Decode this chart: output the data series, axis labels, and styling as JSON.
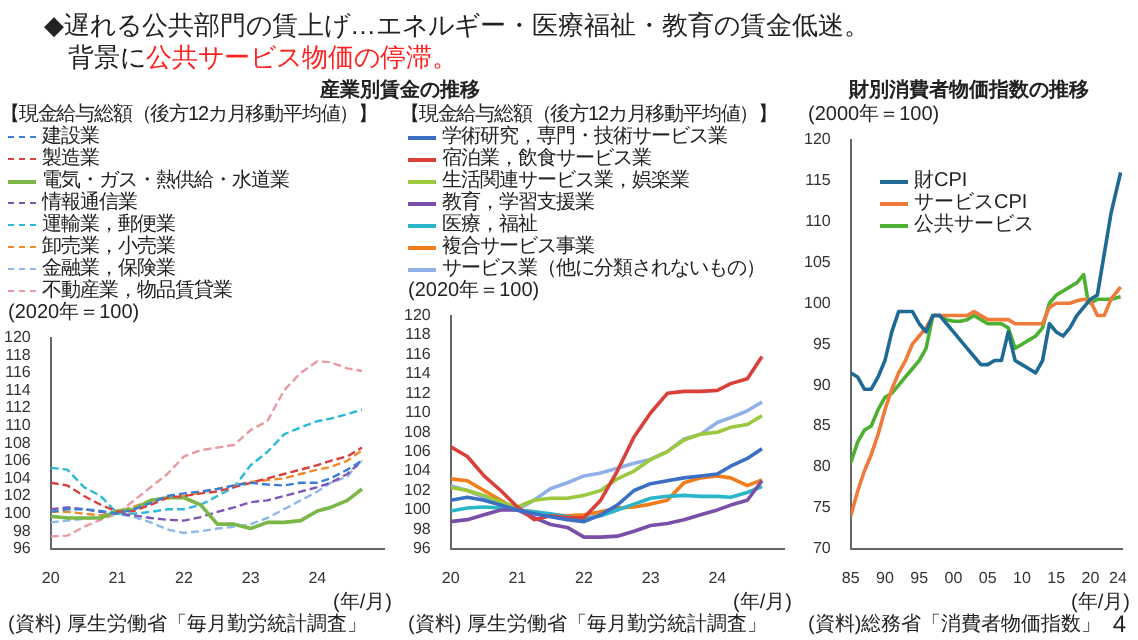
{
  "chart_data": [
    {
      "type": "line",
      "title": "産業別賃金の推移",
      "subtitle": "【現金給与総額（後方12カ月移動平均値）】",
      "ylabel": "(2020年＝100)",
      "xlabel": "(年/月)",
      "annotations": [
        "◆遅れる公共部門の賃上げ…エネルギー・医療福祉・教育の賃金低迷。",
        "背景に",
        "公共サービス物価の停滞。",
        "(資料) 厚生労働省「毎月勤労統計調査」"
      ],
      "x": [
        2020,
        2020.25,
        2020.5,
        2020.75,
        2021,
        2021.25,
        2021.5,
        2021.75,
        2022,
        2022.25,
        2022.5,
        2022.75,
        2023,
        2023.25,
        2023.5,
        2023.75,
        2024,
        2024.2,
        2024.45,
        2024.67
      ],
      "xlim": [
        2020,
        2025
      ],
      "xticks": [
        {
          "value": 2020,
          "label": "20"
        },
        {
          "value": 2021,
          "label": "21"
        },
        {
          "value": 2022,
          "label": "22"
        },
        {
          "value": 2023,
          "label": "23"
        },
        {
          "value": 2024,
          "label": "24"
        }
      ],
      "ylim": [
        96,
        120
      ],
      "yticks": [
        96,
        98,
        100,
        102,
        104,
        106,
        108,
        110,
        112,
        114,
        116,
        118,
        120
      ],
      "legend": "top left",
      "series": [
        {
          "name": "建設業",
          "color": "#3a7fd5",
          "line_style": "dashed",
          "values": [
            100.2,
            100.5,
            100.5,
            100.3,
            100,
            100.5,
            101.2,
            102,
            102.3,
            102.5,
            102.8,
            103.2,
            103.5,
            103.3,
            103.2,
            103.5,
            103.5,
            104,
            105,
            106
          ]
        },
        {
          "name": "製造業",
          "color": "#d94040",
          "line_style": "dashed",
          "values": [
            103.5,
            103.2,
            102,
            101,
            100.2,
            100.3,
            101,
            101.8,
            102,
            102.3,
            102.5,
            103,
            103.5,
            104,
            104.5,
            105,
            105.5,
            106,
            106.5,
            107.5
          ]
        },
        {
          "name": "電気・ガス・熱供給・水道業",
          "color": "#7ab648",
          "line_style": "solid",
          "values": [
            99.7,
            99.5,
            99.5,
            99.5,
            100.3,
            100.5,
            101.5,
            101.8,
            101.8,
            101,
            98.8,
            98.8,
            98.3,
            99,
            99,
            99.2,
            100.3,
            100.7,
            101.5,
            102.8
          ]
        },
        {
          "name": "情報通信業",
          "color": "#7e57b5",
          "line_style": "dashed",
          "values": [
            100.5,
            100.7,
            100.5,
            100.2,
            100,
            99.8,
            99.5,
            99.3,
            99.2,
            99.6,
            100.2,
            100.7,
            101.3,
            101.5,
            102,
            102.5,
            103,
            103.5,
            104.5,
            106
          ]
        },
        {
          "name": "運輸業，郵便業",
          "color": "#2bb9d8",
          "line_style": "dashed",
          "values": [
            105.2,
            105,
            103,
            102,
            100,
            100,
            100.2,
            100.5,
            100.5,
            101,
            102,
            103,
            105.5,
            107,
            109,
            109.8,
            110.5,
            110.8,
            111.3,
            111.8
          ]
        },
        {
          "name": "卸売業，小売業",
          "color": "#f08a2a",
          "line_style": "dashed",
          "values": [
            100.2,
            100.2,
            100,
            99.8,
            100.2,
            100.8,
            101.5,
            101.8,
            102,
            102.4,
            102.8,
            103.2,
            103.6,
            103.8,
            104,
            104.5,
            105,
            105.3,
            106,
            107.2
          ]
        },
        {
          "name": "金融業，保険業",
          "color": "#8db8e8",
          "line_style": "dashed",
          "values": [
            99,
            99.2,
            99.4,
            99.6,
            100,
            99.6,
            99,
            98.2,
            97.8,
            98,
            98.3,
            98.5,
            98.8,
            99.5,
            100.5,
            101.5,
            102.5,
            103.5,
            104.2,
            106.2
          ]
        },
        {
          "name": "不動産業，物品賃貸業",
          "color": "#e89aa0",
          "line_style": "dashed",
          "values": [
            97.4,
            97.5,
            98.5,
            99.3,
            100,
            101.5,
            103,
            104.5,
            106.5,
            107.2,
            107.5,
            107.8,
            109.5,
            110.5,
            114,
            116,
            117.3,
            117.2,
            116.5,
            116.2
          ]
        }
      ]
    },
    {
      "type": "line",
      "subtitle": "【現金給与総額（後方12カ月移動平均値）】",
      "ylabel": "(2020年＝100)",
      "xlabel": "(年/月)",
      "annotations": [
        "(資料) 厚生労働省「毎月勤労統計調査」"
      ],
      "x": [
        2020,
        2020.25,
        2020.5,
        2020.75,
        2021,
        2021.25,
        2021.5,
        2021.75,
        2022,
        2022.25,
        2022.5,
        2022.75,
        2023,
        2023.25,
        2023.5,
        2023.75,
        2024,
        2024.2,
        2024.45,
        2024.67
      ],
      "xlim": [
        2020,
        2025
      ],
      "xticks": [
        {
          "value": 2020,
          "label": "20"
        },
        {
          "value": 2021,
          "label": "21"
        },
        {
          "value": 2022,
          "label": "22"
        },
        {
          "value": 2023,
          "label": "23"
        },
        {
          "value": 2024,
          "label": "24"
        }
      ],
      "ylim": [
        96,
        120
      ],
      "yticks": [
        96,
        98,
        100,
        102,
        104,
        106,
        108,
        110,
        112,
        114,
        116,
        118,
        120
      ],
      "legend": "top left",
      "line_style": "solid",
      "series": [
        {
          "name": "学術研究，専門・技術サービス業",
          "color": "#3a6fc4",
          "values": [
            101,
            101.3,
            101,
            100.5,
            100,
            99.6,
            99.3,
            99,
            98.8,
            99.5,
            100.5,
            102,
            102.7,
            103,
            103.3,
            103.5,
            103.7,
            104.5,
            105.3,
            106.3
          ]
        },
        {
          "name": "宿泊業，飲食サービス業",
          "color": "#d9403a",
          "values": [
            106.5,
            105.5,
            103.5,
            102,
            100.3,
            99,
            99.4,
            99.2,
            99.2,
            101,
            104,
            107.5,
            110,
            112,
            112.2,
            112.2,
            112.3,
            113,
            113.5,
            115.8
          ]
        },
        {
          "name": "生活関連サービス業，娯楽業",
          "color": "#9bc83c",
          "values": [
            102.3,
            102,
            101.5,
            100.8,
            100.3,
            101,
            101.2,
            101.2,
            101.5,
            102,
            103.2,
            104,
            105.2,
            106,
            107.2,
            107.8,
            108,
            108.5,
            108.8,
            109.7
          ]
        },
        {
          "name": "教育，学習支援業",
          "color": "#7a4fa8",
          "values": [
            98.8,
            99,
            99.5,
            100,
            100,
            99.2,
            98.5,
            98.2,
            97.2,
            97.2,
            97.3,
            97.8,
            98.4,
            98.6,
            99,
            99.5,
            100,
            100.5,
            101,
            103
          ]
        },
        {
          "name": "医療，福祉",
          "color": "#2ab5c8",
          "values": [
            99.9,
            100.2,
            100.3,
            100.2,
            100,
            99.8,
            99.6,
            99.3,
            99.1,
            99.4,
            100,
            100.6,
            101.2,
            101.4,
            101.5,
            101.4,
            101.4,
            101.3,
            101.8,
            102.4
          ]
        },
        {
          "name": "複合サービス事業",
          "color": "#f07c1a",
          "values": [
            103.2,
            103,
            102,
            101,
            100,
            99.8,
            99.5,
            99.4,
            99.5,
            99.8,
            100.2,
            100.3,
            100.6,
            101,
            102.8,
            103.3,
            103.5,
            103.3,
            102.5,
            103.1
          ]
        },
        {
          "name": "サービス業（他に分類されないもの）",
          "color": "#90b0e8",
          "values": [
            102.5,
            102,
            101.3,
            100.7,
            100,
            101,
            102.2,
            102.8,
            103.5,
            103.8,
            104.3,
            104.8,
            105.2,
            106,
            107.3,
            107.8,
            109,
            109.5,
            110.2,
            111.1
          ]
        }
      ]
    },
    {
      "type": "line",
      "title": "財別消費者物価指数の推移",
      "ylabel": "(2000年＝100)",
      "xlabel": "(年/月)",
      "annotations": [
        "(資料)総務省「消費者物価指数」",
        "4"
      ],
      "xlim": [
        1985,
        2024.6
      ],
      "xticks": [
        {
          "value": 1985,
          "label": "85"
        },
        {
          "value": 1990,
          "label": "90"
        },
        {
          "value": 1995,
          "label": "95"
        },
        {
          "value": 2000,
          "label": "00"
        },
        {
          "value": 2005,
          "label": "05"
        },
        {
          "value": 2010,
          "label": "10"
        },
        {
          "value": 2015,
          "label": "15"
        },
        {
          "value": 2020,
          "label": "20"
        },
        {
          "value": 2024,
          "label": "24"
        }
      ],
      "ylim": [
        70,
        120
      ],
      "yticks": [
        70,
        75,
        80,
        85,
        90,
        95,
        100,
        105,
        110,
        115,
        120
      ],
      "legend": "top",
      "line_style": "solid",
      "series": [
        {
          "name": "財CPI",
          "color": "#1f6a94",
          "x": [
            1985,
            1986,
            1987,
            1988,
            1989,
            1990,
            1991,
            1992,
            1993,
            1994,
            1995,
            1996,
            1997,
            1998,
            1999,
            2000,
            2001,
            2002,
            2003,
            2004,
            2005,
            2006,
            2007,
            2008,
            2009,
            2010,
            2011,
            2012,
            2013,
            2014,
            2015,
            2016,
            2017,
            2018,
            2019,
            2020,
            2021,
            2022,
            2023,
            2024.4
          ],
          "values": [
            91.5,
            91,
            89.5,
            89.5,
            91,
            93,
            96.5,
            99,
            99,
            99,
            97.5,
            96.5,
            98.5,
            98.5,
            97.5,
            96.5,
            95.5,
            94.5,
            93.5,
            92.5,
            92.5,
            93,
            93,
            96.5,
            93,
            92.5,
            92,
            91.5,
            93,
            97.5,
            96.5,
            96,
            97,
            98.5,
            99.5,
            100.5,
            101,
            106,
            111,
            116
          ]
        },
        {
          "name": "サービスCPI",
          "color": "#f07a3a",
          "x": [
            1985,
            1986,
            1987,
            1988,
            1989,
            1990,
            1991,
            1992,
            1993,
            1994,
            1995,
            1996,
            1997,
            1998,
            1999,
            2000,
            2001,
            2002,
            2003,
            2004,
            2005,
            2006,
            2007,
            2008,
            2009,
            2010,
            2011,
            2012,
            2013,
            2014,
            2015,
            2016,
            2017,
            2018,
            2019,
            2020,
            2021,
            2022,
            2023,
            2024.4
          ],
          "values": [
            74,
            77,
            79.5,
            81.5,
            84,
            87,
            89.5,
            91.5,
            93,
            95,
            96,
            97,
            98.5,
            98.5,
            98.5,
            98.5,
            98.5,
            98.5,
            99,
            98.5,
            98,
            98,
            98,
            98,
            97.5,
            97.5,
            97.5,
            97.5,
            97.5,
            99.5,
            100,
            100,
            100,
            100.3,
            100.5,
            100.3,
            98.5,
            98.5,
            100.5,
            102
          ]
        },
        {
          "name": "公共サービス",
          "color": "#4cb030",
          "x": [
            1985,
            1986,
            1987,
            1988,
            1989,
            1990,
            1991,
            1992,
            1993,
            1994,
            1995,
            1996,
            1997,
            1998,
            1999,
            2000,
            2001,
            2002,
            2003,
            2004,
            2005,
            2006,
            2007,
            2008,
            2009,
            2010,
            2011,
            2012,
            2013,
            2014,
            2015,
            2016,
            2017,
            2018,
            2019,
            2019.6,
            2020,
            2021,
            2022,
            2023,
            2024.4
          ],
          "values": [
            80.5,
            83,
            84.5,
            85,
            87,
            88.5,
            89,
            90,
            91,
            92,
            93,
            94.5,
            98.5,
            98.5,
            98,
            97.8,
            97.8,
            98,
            98.5,
            98,
            97.5,
            97.5,
            97.5,
            97,
            94.5,
            95,
            95.5,
            96,
            97,
            100,
            101,
            101.5,
            102,
            102.5,
            103.5,
            100.5,
            100,
            100.5,
            100.5,
            100.5,
            100.8
          ]
        }
      ]
    }
  ]
}
